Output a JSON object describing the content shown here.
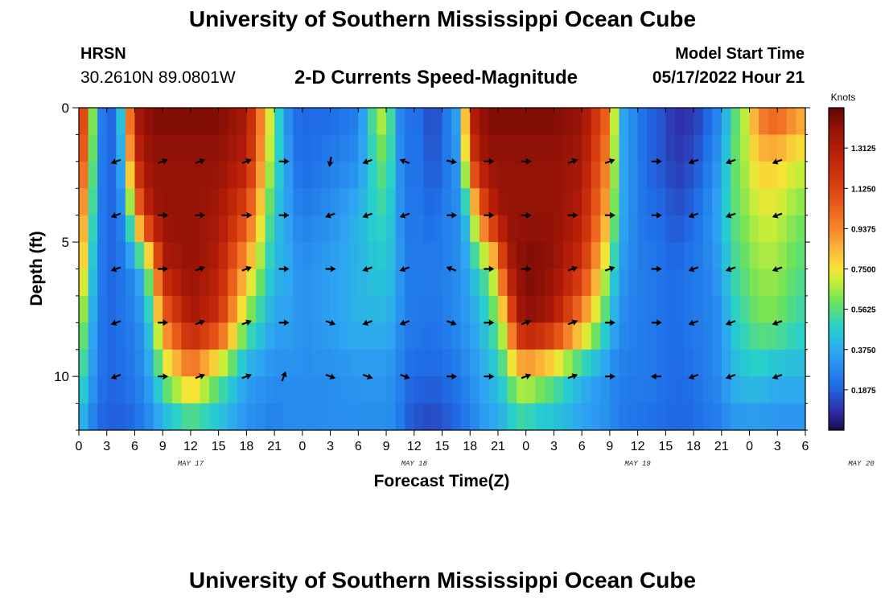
{
  "header": {
    "title": "University of Southern Mississippi Ocean Cube",
    "station": "HRSN",
    "coords": "30.2610N  89.0801W",
    "subtitle": "2-D Currents Speed-Magnitude",
    "start_label": "Model Start Time",
    "start_value": "05/17/2022 Hour 21"
  },
  "footer": {
    "title": "University of Southern Mississippi Ocean Cube"
  },
  "chart_data": {
    "type": "heatmap",
    "title": "2-D Currents Speed-Magnitude",
    "xlabel": "Forecast Time(Z)",
    "ylabel": "Depth (ft)",
    "x_ticks": [
      "0",
      "3",
      "6",
      "9",
      "12",
      "15",
      "18",
      "21",
      "0",
      "3",
      "6",
      "9",
      "12",
      "15",
      "18",
      "21",
      "0",
      "3",
      "6",
      "9",
      "12",
      "15",
      "18",
      "21",
      "0",
      "3",
      "6"
    ],
    "x_date_labels": [
      {
        "label": "MAY 17",
        "hour": 12
      },
      {
        "label": "MAY 18",
        "hour": 36
      },
      {
        "label": "MAY 19",
        "hour": 60
      },
      {
        "label": "MAY 20",
        "hour": 84
      }
    ],
    "xlim_hours": [
      0,
      78
    ],
    "ylim_ft": [
      0,
      12
    ],
    "y_ticks": [
      "0",
      "5",
      "10"
    ],
    "y_tick_values": [
      0,
      5,
      10
    ],
    "colorbar": {
      "units": "Knots",
      "min": 0.0,
      "max": 1.5,
      "ticks": [
        "0.1875",
        "0.3750",
        "0.5625",
        "0.7500",
        "0.9375",
        "1.1250",
        "1.3125"
      ],
      "tick_values": [
        0.1875,
        0.375,
        0.5625,
        0.75,
        0.9375,
        1.125,
        1.3125
      ]
    },
    "speed_model": {
      "hours": [
        0,
        1,
        2,
        3,
        4,
        5,
        6,
        7,
        8,
        9,
        12,
        15,
        18,
        21,
        22,
        23,
        24,
        27,
        30,
        32,
        33,
        34,
        35,
        36,
        38,
        39,
        41,
        42,
        43,
        44,
        45,
        46,
        47,
        48,
        49,
        51,
        54,
        57,
        58,
        60,
        61,
        63,
        64,
        66,
        67,
        69,
        70,
        72,
        73,
        75,
        76,
        78
      ],
      "depths": [
        0,
        2,
        4,
        6,
        8,
        10,
        12
      ],
      "values_by_depth": [
        [
          1.3,
          0.95,
          0.3,
          0.2,
          0.2,
          0.7,
          1.35,
          1.4,
          1.45,
          1.45,
          1.45,
          1.45,
          1.35,
          0.6,
          0.35,
          0.22,
          0.2,
          0.2,
          0.25,
          0.65,
          0.72,
          0.35,
          0.2,
          0.25,
          0.12,
          0.2,
          0.4,
          1.3,
          1.4,
          1.45,
          1.45,
          1.45,
          1.45,
          1.45,
          1.45,
          1.45,
          1.4,
          1.0,
          0.4,
          0.25,
          0.2,
          0.15,
          0.08,
          0.1,
          0.15,
          0.3,
          0.5,
          0.75,
          1.0,
          1.1,
          1.0,
          0.9
        ],
        [
          1.2,
          0.85,
          0.3,
          0.2,
          0.2,
          0.55,
          1.2,
          1.35,
          1.4,
          1.4,
          1.4,
          1.4,
          1.3,
          0.55,
          0.4,
          0.25,
          0.2,
          0.25,
          0.3,
          0.55,
          0.6,
          0.4,
          0.2,
          0.25,
          0.15,
          0.2,
          0.35,
          1.1,
          1.3,
          1.4,
          1.4,
          1.4,
          1.4,
          1.4,
          1.4,
          1.4,
          1.35,
          0.9,
          0.4,
          0.25,
          0.2,
          0.15,
          0.1,
          0.15,
          0.2,
          0.35,
          0.55,
          0.7,
          0.8,
          0.8,
          0.75,
          0.7
        ],
        [
          1.0,
          0.75,
          0.28,
          0.2,
          0.2,
          0.35,
          0.8,
          1.2,
          1.35,
          1.4,
          1.4,
          1.35,
          1.1,
          0.45,
          0.4,
          0.3,
          0.25,
          0.3,
          0.4,
          0.5,
          0.5,
          0.4,
          0.22,
          0.25,
          0.2,
          0.25,
          0.3,
          0.55,
          0.95,
          1.2,
          1.35,
          1.4,
          1.4,
          1.4,
          1.4,
          1.4,
          1.3,
          0.8,
          0.4,
          0.25,
          0.22,
          0.2,
          0.15,
          0.2,
          0.25,
          0.4,
          0.55,
          0.65,
          0.7,
          0.7,
          0.65,
          0.6
        ],
        [
          0.9,
          0.6,
          0.28,
          0.2,
          0.2,
          0.25,
          0.3,
          0.45,
          0.8,
          1.3,
          1.4,
          1.3,
          0.85,
          0.4,
          0.4,
          0.35,
          0.3,
          0.35,
          0.4,
          0.45,
          0.45,
          0.4,
          0.25,
          0.25,
          0.25,
          0.25,
          0.3,
          0.4,
          0.5,
          0.6,
          0.85,
          1.3,
          1.4,
          1.45,
          1.45,
          1.4,
          1.2,
          0.6,
          0.35,
          0.25,
          0.25,
          0.22,
          0.2,
          0.25,
          0.25,
          0.35,
          0.5,
          0.6,
          0.65,
          0.65,
          0.6,
          0.55
        ],
        [
          0.7,
          0.5,
          0.25,
          0.2,
          0.2,
          0.25,
          0.25,
          0.35,
          0.55,
          0.95,
          1.35,
          1.2,
          0.6,
          0.35,
          0.35,
          0.35,
          0.3,
          0.35,
          0.4,
          0.4,
          0.4,
          0.35,
          0.25,
          0.25,
          0.22,
          0.25,
          0.3,
          0.35,
          0.4,
          0.5,
          0.6,
          0.85,
          1.3,
          1.4,
          1.4,
          1.3,
          0.9,
          0.45,
          0.3,
          0.25,
          0.25,
          0.22,
          0.2,
          0.25,
          0.25,
          0.3,
          0.45,
          0.55,
          0.6,
          0.6,
          0.55,
          0.5
        ],
        [
          0.6,
          0.4,
          0.25,
          0.2,
          0.2,
          0.22,
          0.25,
          0.3,
          0.4,
          0.6,
          0.9,
          0.6,
          0.35,
          0.3,
          0.3,
          0.3,
          0.3,
          0.3,
          0.32,
          0.32,
          0.32,
          0.3,
          0.22,
          0.2,
          0.2,
          0.2,
          0.25,
          0.3,
          0.35,
          0.4,
          0.45,
          0.55,
          0.7,
          0.75,
          0.7,
          0.6,
          0.4,
          0.3,
          0.25,
          0.25,
          0.25,
          0.22,
          0.2,
          0.22,
          0.25,
          0.3,
          0.4,
          0.45,
          0.45,
          0.4,
          0.4,
          0.4
        ],
        [
          0.4,
          0.3,
          0.2,
          0.18,
          0.18,
          0.18,
          0.2,
          0.25,
          0.3,
          0.35,
          0.45,
          0.4,
          0.3,
          0.25,
          0.28,
          0.3,
          0.28,
          0.3,
          0.3,
          0.3,
          0.3,
          0.28,
          0.2,
          0.15,
          0.12,
          0.15,
          0.2,
          0.25,
          0.3,
          0.35,
          0.35,
          0.4,
          0.45,
          0.45,
          0.4,
          0.4,
          0.35,
          0.3,
          0.25,
          0.22,
          0.22,
          0.2,
          0.2,
          0.2,
          0.22,
          0.25,
          0.3,
          0.3,
          0.3,
          0.3,
          0.3,
          0.3
        ]
      ]
    },
    "vectors": {
      "hours": [
        4,
        9,
        13,
        18,
        22,
        27,
        31,
        35,
        40,
        44,
        48,
        53,
        57,
        62,
        66,
        70,
        75
      ],
      "depths": [
        2,
        4,
        6,
        8,
        10
      ],
      "direction_deg": [
        [
          200,
          20,
          20,
          20,
          0,
          260,
          200,
          160,
          350,
          0,
          0,
          20,
          20,
          0,
          200,
          200,
          200
        ],
        [
          200,
          0,
          0,
          0,
          0,
          200,
          200,
          200,
          0,
          0,
          0,
          0,
          0,
          0,
          200,
          200,
          200
        ],
        [
          200,
          0,
          20,
          20,
          0,
          0,
          200,
          200,
          160,
          0,
          0,
          20,
          20,
          0,
          200,
          200,
          200
        ],
        [
          200,
          0,
          20,
          20,
          0,
          340,
          200,
          200,
          340,
          0,
          20,
          20,
          0,
          0,
          200,
          200,
          200
        ],
        [
          200,
          0,
          20,
          20,
          70,
          340,
          340,
          340,
          0,
          0,
          20,
          20,
          0,
          180,
          200,
          200,
          200
        ]
      ]
    }
  }
}
